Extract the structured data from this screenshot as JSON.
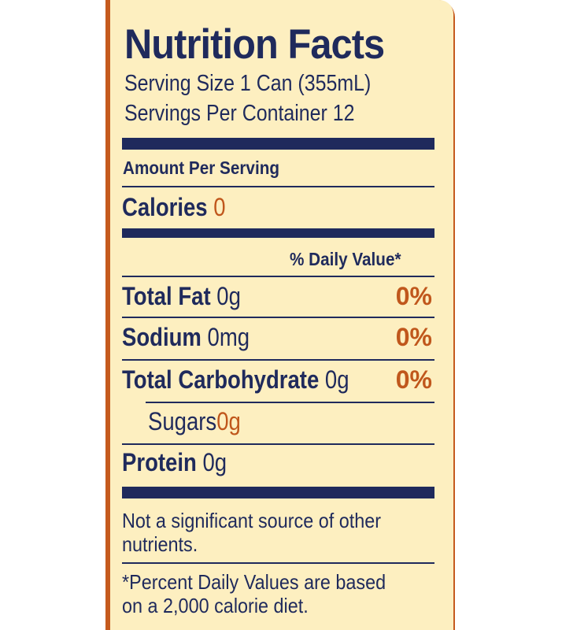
{
  "colors": {
    "background": "#ffffff",
    "frame": "#c55a1e",
    "panel": "#fdefc0",
    "ink": "#1f2a5c",
    "accent": "#c0571c"
  },
  "label": {
    "title": "Nutrition Facts",
    "serving_size": "Serving Size 1 Can (355mL)",
    "servings_per_container": "Servings Per Container 12",
    "amount_per_serving": "Amount Per Serving",
    "calories": {
      "label": "Calories",
      "value": "0"
    },
    "daily_value_header": "% Daily Value*",
    "nutrients": [
      {
        "name": "Total Fat",
        "amount": "0g",
        "daily_value": "0%"
      },
      {
        "name": "Sodium",
        "amount": "0mg",
        "daily_value": "0%"
      },
      {
        "name": "Total Carbohydrate",
        "amount": "0g",
        "daily_value": "0%"
      },
      {
        "name": "Sugars",
        "amount": "0g"
      },
      {
        "name": "Protein",
        "amount": "0g"
      }
    ],
    "note": {
      "line1": "Not a significant source of other",
      "line2": "nutrients."
    },
    "footnote": {
      "line1": "*Percent Daily Values are based",
      "line2": "on a 2,000 calorie diet."
    }
  }
}
